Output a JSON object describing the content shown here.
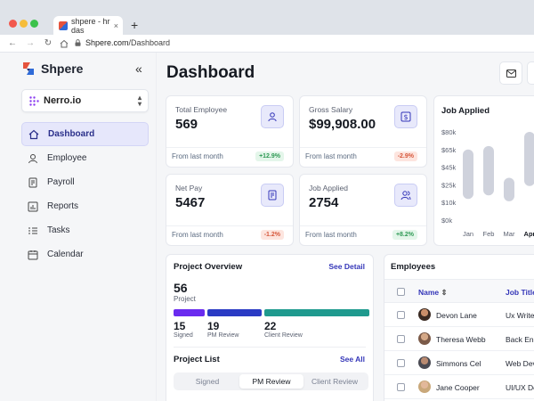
{
  "browser": {
    "tab_title": "shpere - hr das",
    "url_host": "Shpere.com",
    "url_path": "/Dashboard",
    "new_tab": "+",
    "tab_close": "×"
  },
  "sidebar": {
    "brand": "Shpere",
    "collapse": "«",
    "org": "Nerro.io",
    "items": [
      {
        "label": "Dashboard",
        "icon": "home-icon",
        "active": true
      },
      {
        "label": "Employee",
        "icon": "user-icon"
      },
      {
        "label": "Payroll",
        "icon": "document-icon"
      },
      {
        "label": "Reports",
        "icon": "chart-icon"
      },
      {
        "label": "Tasks",
        "icon": "list-icon"
      },
      {
        "label": "Calendar",
        "icon": "calendar-icon"
      }
    ]
  },
  "main": {
    "title": "Dashboard",
    "stats": [
      {
        "label": "Total Employee",
        "value": "569",
        "foot": "From last month",
        "change": "+12.9%",
        "trend": "up",
        "icon": "user-icon"
      },
      {
        "label": "Gross Salary",
        "value": "$99,908.00",
        "foot": "From last month",
        "change": "-2.9%",
        "trend": "down",
        "icon": "dollar-icon"
      },
      {
        "label": "Net Pay",
        "value": "5467",
        "foot": "From last month",
        "change": "-1.2%",
        "trend": "down",
        "icon": "receipt-icon"
      },
      {
        "label": "Job Applied",
        "value": "2754",
        "foot": "From last month",
        "change": "+8.2%",
        "trend": "up",
        "icon": "users-icon"
      }
    ],
    "project_overview": {
      "title": "Project Overview",
      "see_detail": "See Detail",
      "total": "56",
      "total_label": "Project",
      "segments": [
        {
          "count": "15",
          "label": "Signed",
          "color": "#6a2bef"
        },
        {
          "count": "19",
          "label": "PM Review",
          "color": "#2a3bc4"
        },
        {
          "count": "22",
          "label": "Client Review",
          "color": "#1f9a8e"
        }
      ],
      "list_title": "Project List",
      "see_all": "See All",
      "tabs": [
        "Signed",
        "PM Review",
        "Client Review"
      ],
      "active_tab": "PM Review"
    },
    "employees": {
      "title": "Employees",
      "col_name": "Name",
      "col_job": "Job Title",
      "rows": [
        {
          "name": "Devon Lane",
          "job": "Ux Writer"
        },
        {
          "name": "Theresa Webb",
          "job": "Back End"
        },
        {
          "name": "Simmons Cel",
          "job": "Web Dev"
        },
        {
          "name": "Jane Cooper",
          "job": "UI/UX Des"
        }
      ]
    }
  },
  "chart_data": {
    "type": "bar",
    "title": "Job Applied",
    "categories": [
      "Jan",
      "Feb",
      "Mar",
      "Apr"
    ],
    "ranges": [
      [
        13,
        65
      ],
      [
        16,
        68
      ],
      [
        11,
        33
      ],
      [
        24,
        87
      ]
    ],
    "y_ticks": [
      "$0k",
      "$10k",
      "$25k",
      "$45k",
      "$65k",
      "$80k"
    ],
    "y_tick_values": [
      0,
      10,
      25,
      45,
      65,
      80
    ],
    "ylim": [
      0,
      80
    ],
    "bar_color": "#cfd2dc"
  }
}
